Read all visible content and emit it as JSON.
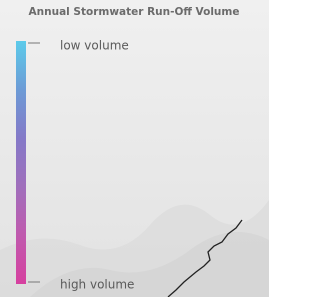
{
  "legend": {
    "title": "Annual Stormwater Run-Off Volume",
    "low_label": "low volume",
    "high_label": "high volume"
  }
}
